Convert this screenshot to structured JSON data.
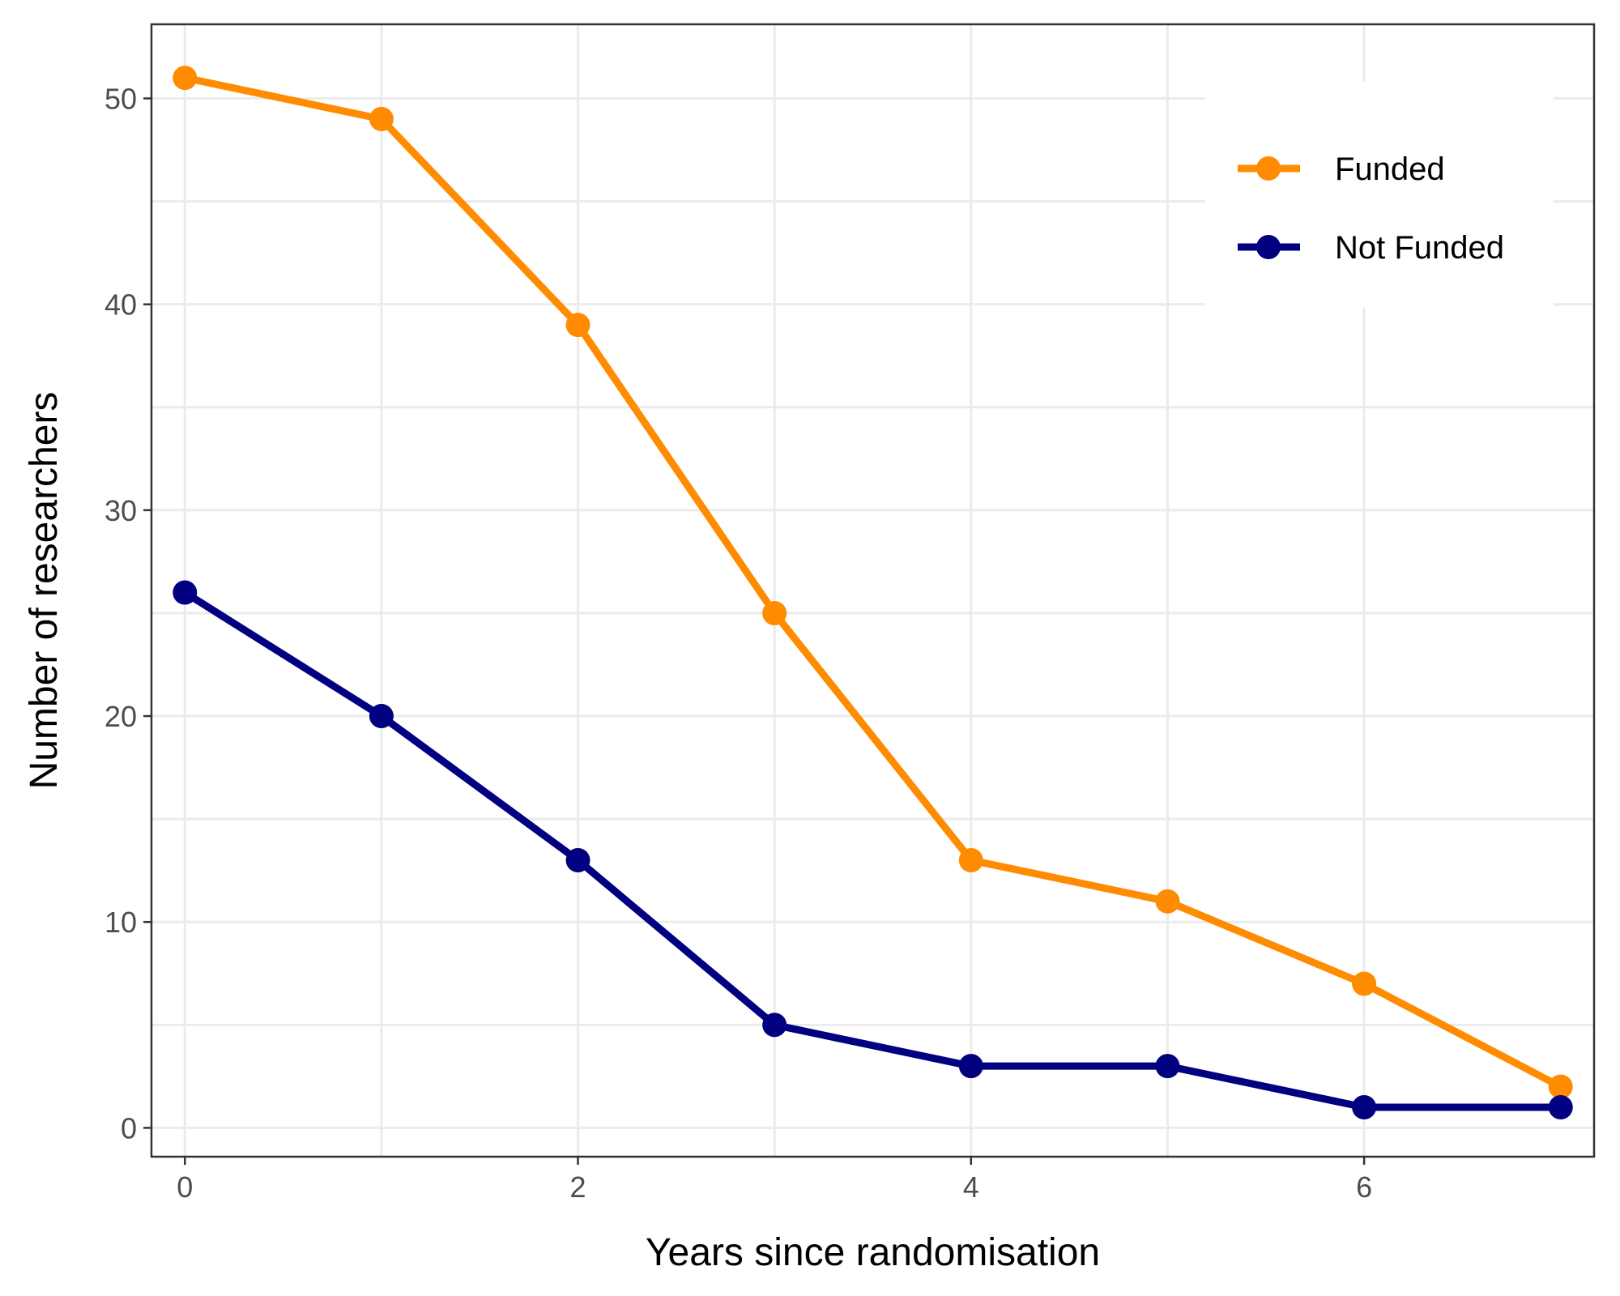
{
  "chart_data": {
    "type": "line",
    "title": "",
    "xlabel": "Years since randomisation",
    "ylabel": "Number of researchers",
    "xlim": [
      -0.17,
      7.17
    ],
    "ylim": [
      -1.4,
      53.6
    ],
    "x_ticks": [
      0,
      2,
      4,
      6
    ],
    "y_ticks": [
      0,
      10,
      20,
      30,
      40,
      50
    ],
    "grid": true,
    "legend_position": "top-right",
    "x": [
      0,
      1,
      2,
      3,
      4,
      5,
      6,
      7
    ],
    "series": [
      {
        "name": "Funded",
        "color": "#FF8C00",
        "values": [
          51,
          49,
          39,
          25,
          13,
          11,
          7,
          2
        ]
      },
      {
        "name": "Not Funded",
        "color": "#000080",
        "values": [
          26,
          20,
          13,
          5,
          3,
          3,
          1,
          1
        ]
      }
    ]
  }
}
